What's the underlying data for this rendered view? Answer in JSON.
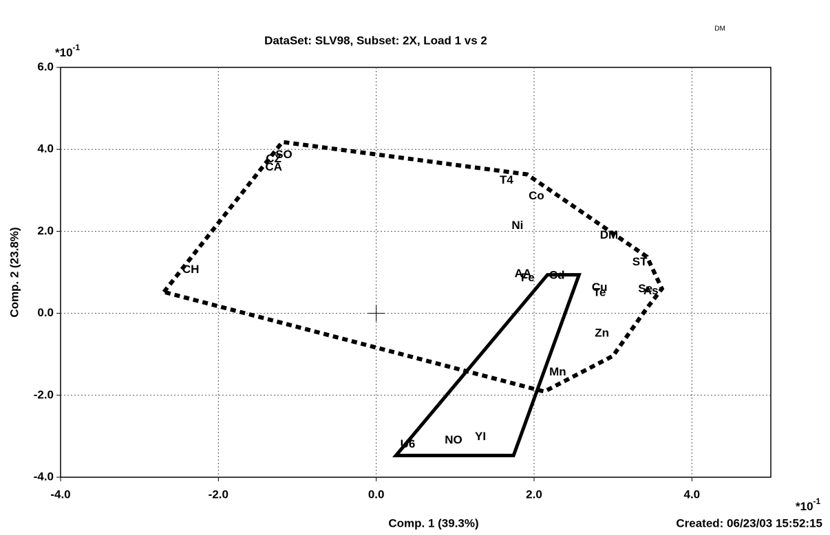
{
  "chart_data": {
    "type": "scatter",
    "title": "DataSet: SLV98, Subset: 2X, Load 1 vs 2",
    "corner_text": "DM",
    "xlabel": "Comp. 1 (39.3%)",
    "ylabel": "Comp. 2 (23.8%)",
    "created": "Created: 06/23/03 15:52:15",
    "x_multiplier": {
      "base": "*10",
      "exponent": "-1"
    },
    "y_multiplier": {
      "base": "*10",
      "exponent": "-1"
    },
    "xlim": [
      -4,
      5
    ],
    "ylim": [
      -4,
      6
    ],
    "xticks": [
      {
        "value": -4,
        "label": "-4.0"
      },
      {
        "value": -2,
        "label": "-2.0"
      },
      {
        "value": 0,
        "label": "0.0"
      },
      {
        "value": 2,
        "label": "2.0"
      },
      {
        "value": 4,
        "label": "4.0"
      }
    ],
    "yticks": [
      {
        "value": -4,
        "label": "-4.0"
      },
      {
        "value": -2,
        "label": "-2.0"
      },
      {
        "value": 0,
        "label": "0.0"
      },
      {
        "value": 2,
        "label": "2.0"
      },
      {
        "value": 4,
        "label": "4.0"
      },
      {
        "value": 6,
        "label": "6.0"
      }
    ],
    "grid": true,
    "color": "#000000",
    "points": {
      "labels": [
        "CH",
        "CA",
        "CZ",
        "SO",
        "T4",
        "Co",
        "Ni",
        "DM",
        "ST",
        "AA",
        "Fe",
        "Cd",
        "Cu",
        "Te",
        "Se",
        "As",
        "Zn",
        "Mn",
        "U6",
        "NO",
        "YI"
      ],
      "x": [
        -2.35,
        -1.3,
        -1.3,
        -1.17,
        1.65,
        2.03,
        1.79,
        2.95,
        3.34,
        1.86,
        1.92,
        2.29,
        2.83,
        2.83,
        3.41,
        3.48,
        2.86,
        2.3,
        0.4,
        0.98,
        1.32
      ],
      "y": [
        1.06,
        3.56,
        3.76,
        3.86,
        3.24,
        2.85,
        2.13,
        1.9,
        1.24,
        0.96,
        0.86,
        0.92,
        0.62,
        0.5,
        0.59,
        0.54,
        -0.49,
        -1.44,
        -3.2,
        -3.1,
        -3.02
      ]
    },
    "polygons": [
      {
        "style": "dashed",
        "x": [
          -2.69,
          -1.19,
          1.91,
          3.43,
          3.62,
          3.42,
          3.0,
          2.13
        ],
        "y": [
          0.52,
          4.18,
          3.39,
          1.38,
          0.6,
          0.1,
          -1.04,
          -1.91
        ]
      },
      {
        "style": "solid",
        "x": [
          0.25,
          1.74,
          2.57,
          2.17
        ],
        "y": [
          -3.47,
          -3.47,
          0.94,
          0.94
        ]
      }
    ]
  }
}
